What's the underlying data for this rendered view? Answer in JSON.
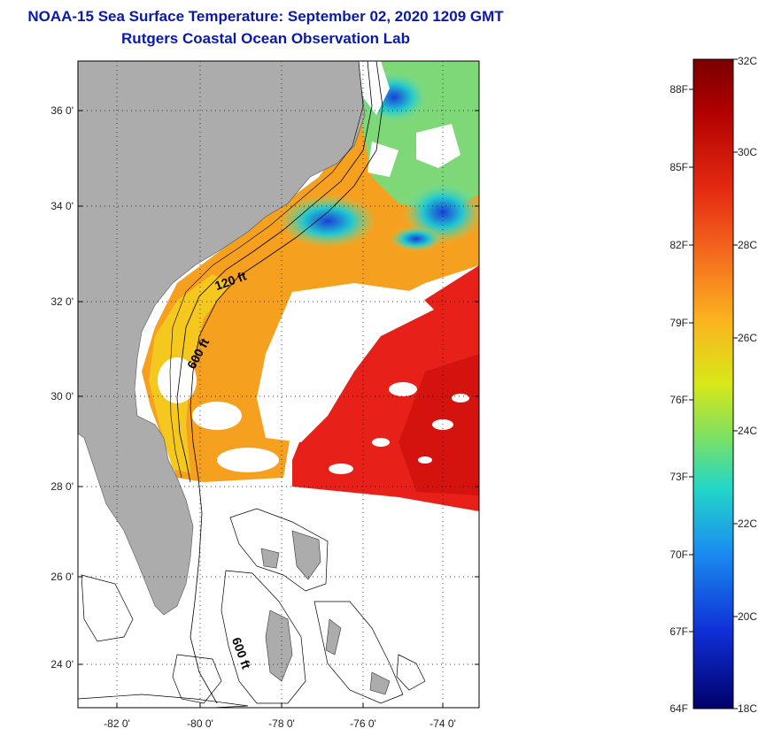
{
  "header": {
    "title": "NOAA-15 Sea Surface Temperature:  September 02, 2020 1209 GMT",
    "subtitle": "Rutgers Coastal Ocean Observation Lab"
  },
  "map": {
    "lat_labels": [
      "36 0'",
      "34 0'",
      "32 0'",
      "30 0'",
      "28 0'",
      "26 0'",
      "24 0'"
    ],
    "lon_labels": [
      "-82 0'",
      "-80 0'",
      "-78 0'",
      "-76 0'",
      "-74 0'"
    ],
    "contour_labels": [
      "120 ft",
      "600 ft",
      "600 ft"
    ],
    "colors": {
      "land": "#acacac",
      "warm_sst": "#e8201a",
      "frame": "#000000"
    }
  },
  "colorbar": {
    "fahrenheit_labels": [
      "88F",
      "85F",
      "82F",
      "79F",
      "76F",
      "73F",
      "70F",
      "67F",
      "64F"
    ],
    "celsius_labels": [
      "32C",
      "30C",
      "28C",
      "26C",
      "24C",
      "22C",
      "20C",
      "18C"
    ]
  }
}
